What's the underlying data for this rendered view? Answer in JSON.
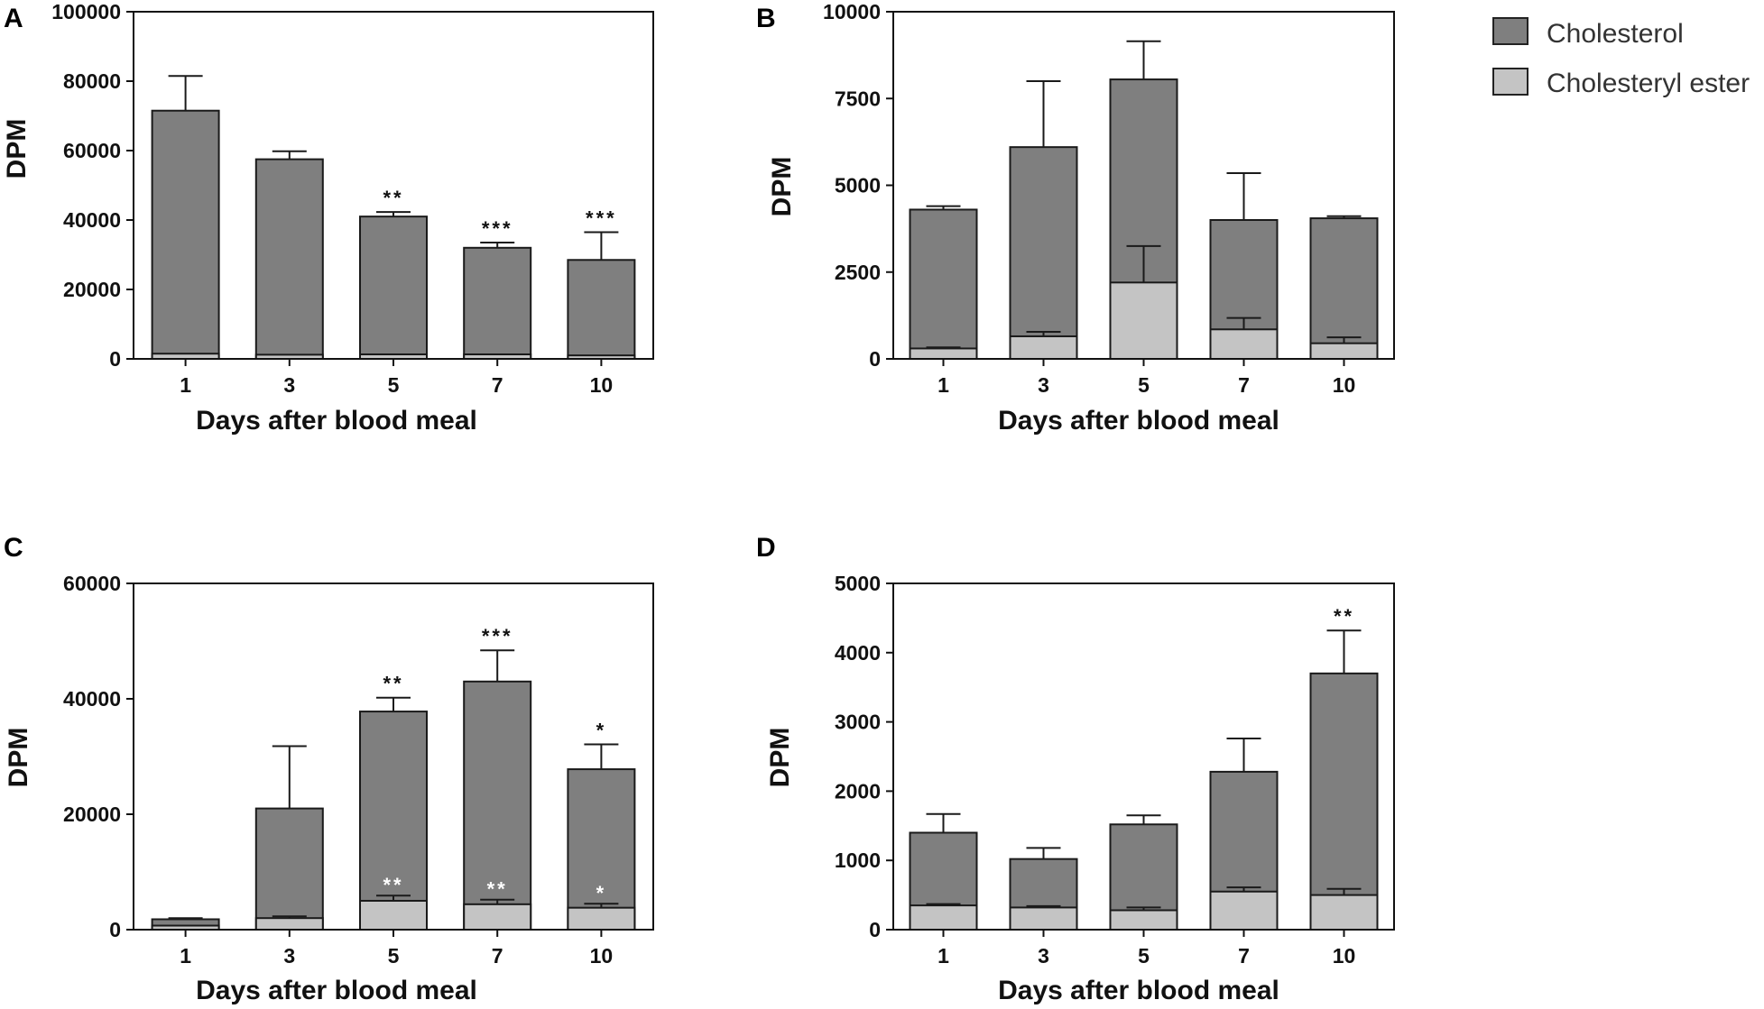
{
  "colors": {
    "cholesterol": "#7f7f7f",
    "cholesteryl_ester": "#c4c4c4",
    "axis": "#111111",
    "sig_dark": "#111111",
    "sig_light": "#ffffff"
  },
  "legend": {
    "items": [
      {
        "label": "Cholesterol",
        "color": "#7f7f7f"
      },
      {
        "label": "Cholesteryl ester",
        "color": "#c4c4c4"
      }
    ]
  },
  "chart_data": [
    {
      "panel": "A",
      "type": "bar",
      "stacked": true,
      "title": "",
      "xlabel": "Days after blood meal",
      "ylabel": "DPM",
      "categories": [
        "1",
        "3",
        "5",
        "7",
        "10"
      ],
      "ylim": [
        0,
        100000
      ],
      "yticks": [
        0,
        20000,
        40000,
        60000,
        80000,
        100000
      ],
      "ytick_labels": [
        "0",
        "20000",
        "40000",
        "60000",
        "80000",
        "100000"
      ],
      "series": [
        {
          "name": "Cholesteryl ester",
          "values": [
            1500,
            1200,
            1300,
            1300,
            1000
          ],
          "errors": [
            0,
            0,
            0,
            0,
            0
          ]
        },
        {
          "name": "Cholesterol",
          "values": [
            71500,
            57500,
            41000,
            32000,
            28500
          ],
          "errors": [
            10000,
            2300,
            1300,
            1500,
            8000
          ]
        }
      ],
      "annotations": {
        "total": [
          "",
          "",
          "**",
          "***",
          "***"
        ],
        "ester": [
          "",
          "",
          "",
          "",
          ""
        ]
      }
    },
    {
      "panel": "B",
      "type": "bar",
      "stacked": true,
      "title": "",
      "xlabel": "Days after blood meal",
      "ylabel": "DPM",
      "categories": [
        "1",
        "3",
        "5",
        "7",
        "10"
      ],
      "ylim": [
        0,
        10000
      ],
      "yticks": [
        0,
        2500,
        5000,
        7500,
        10000
      ],
      "ytick_labels": [
        "0",
        "2500",
        "5000",
        "7500",
        "10000"
      ],
      "series": [
        {
          "name": "Cholesteryl ester",
          "values": [
            300,
            650,
            2200,
            850,
            450
          ],
          "errors": [
            30,
            130,
            1050,
            330,
            170
          ]
        },
        {
          "name": "Cholesterol",
          "values": [
            4300,
            6100,
            8050,
            4000,
            4050
          ],
          "errors": [
            100,
            1900,
            1100,
            1350,
            60
          ]
        }
      ],
      "annotations": {
        "total": [
          "",
          "",
          "",
          "",
          ""
        ],
        "ester": [
          "",
          "",
          "",
          "",
          ""
        ]
      }
    },
    {
      "panel": "C",
      "type": "bar",
      "stacked": true,
      "title": "",
      "xlabel": "Days after blood meal",
      "ylabel": "DPM",
      "categories": [
        "1",
        "3",
        "5",
        "7",
        "10"
      ],
      "ylim": [
        0,
        60000
      ],
      "yticks": [
        0,
        20000,
        40000,
        60000
      ],
      "ytick_labels": [
        "0",
        "20000",
        "40000",
        "60000"
      ],
      "series": [
        {
          "name": "Cholesteryl ester",
          "values": [
            700,
            2000,
            5000,
            4400,
            3800
          ],
          "errors": [
            0,
            300,
            900,
            800,
            700
          ]
        },
        {
          "name": "Cholesterol",
          "values": [
            1800,
            21000,
            37800,
            43000,
            27800
          ],
          "errors": [
            200,
            10800,
            2400,
            5400,
            4300
          ]
        }
      ],
      "annotations": {
        "total": [
          "",
          "",
          "**",
          "***",
          "*"
        ],
        "ester": [
          "",
          "",
          "**",
          "**",
          "*"
        ]
      }
    },
    {
      "panel": "D",
      "type": "bar",
      "stacked": true,
      "title": "",
      "xlabel": "Days after blood meal",
      "ylabel": "DPM",
      "categories": [
        "1",
        "3",
        "5",
        "7",
        "10"
      ],
      "ylim": [
        0,
        5000
      ],
      "yticks": [
        0,
        1000,
        2000,
        3000,
        4000,
        5000
      ],
      "ytick_labels": [
        "0",
        "1000",
        "2000",
        "3000",
        "4000",
        "5000"
      ],
      "series": [
        {
          "name": "Cholesteryl ester",
          "values": [
            350,
            320,
            280,
            550,
            500
          ],
          "errors": [
            20,
            20,
            40,
            60,
            90
          ]
        },
        {
          "name": "Cholesterol",
          "values": [
            1400,
            1020,
            1520,
            2280,
            3700
          ],
          "errors": [
            270,
            160,
            130,
            480,
            620
          ]
        }
      ],
      "annotations": {
        "total": [
          "",
          "",
          "",
          "",
          "**"
        ],
        "ester": [
          "",
          "",
          "",
          "",
          ""
        ]
      }
    }
  ]
}
